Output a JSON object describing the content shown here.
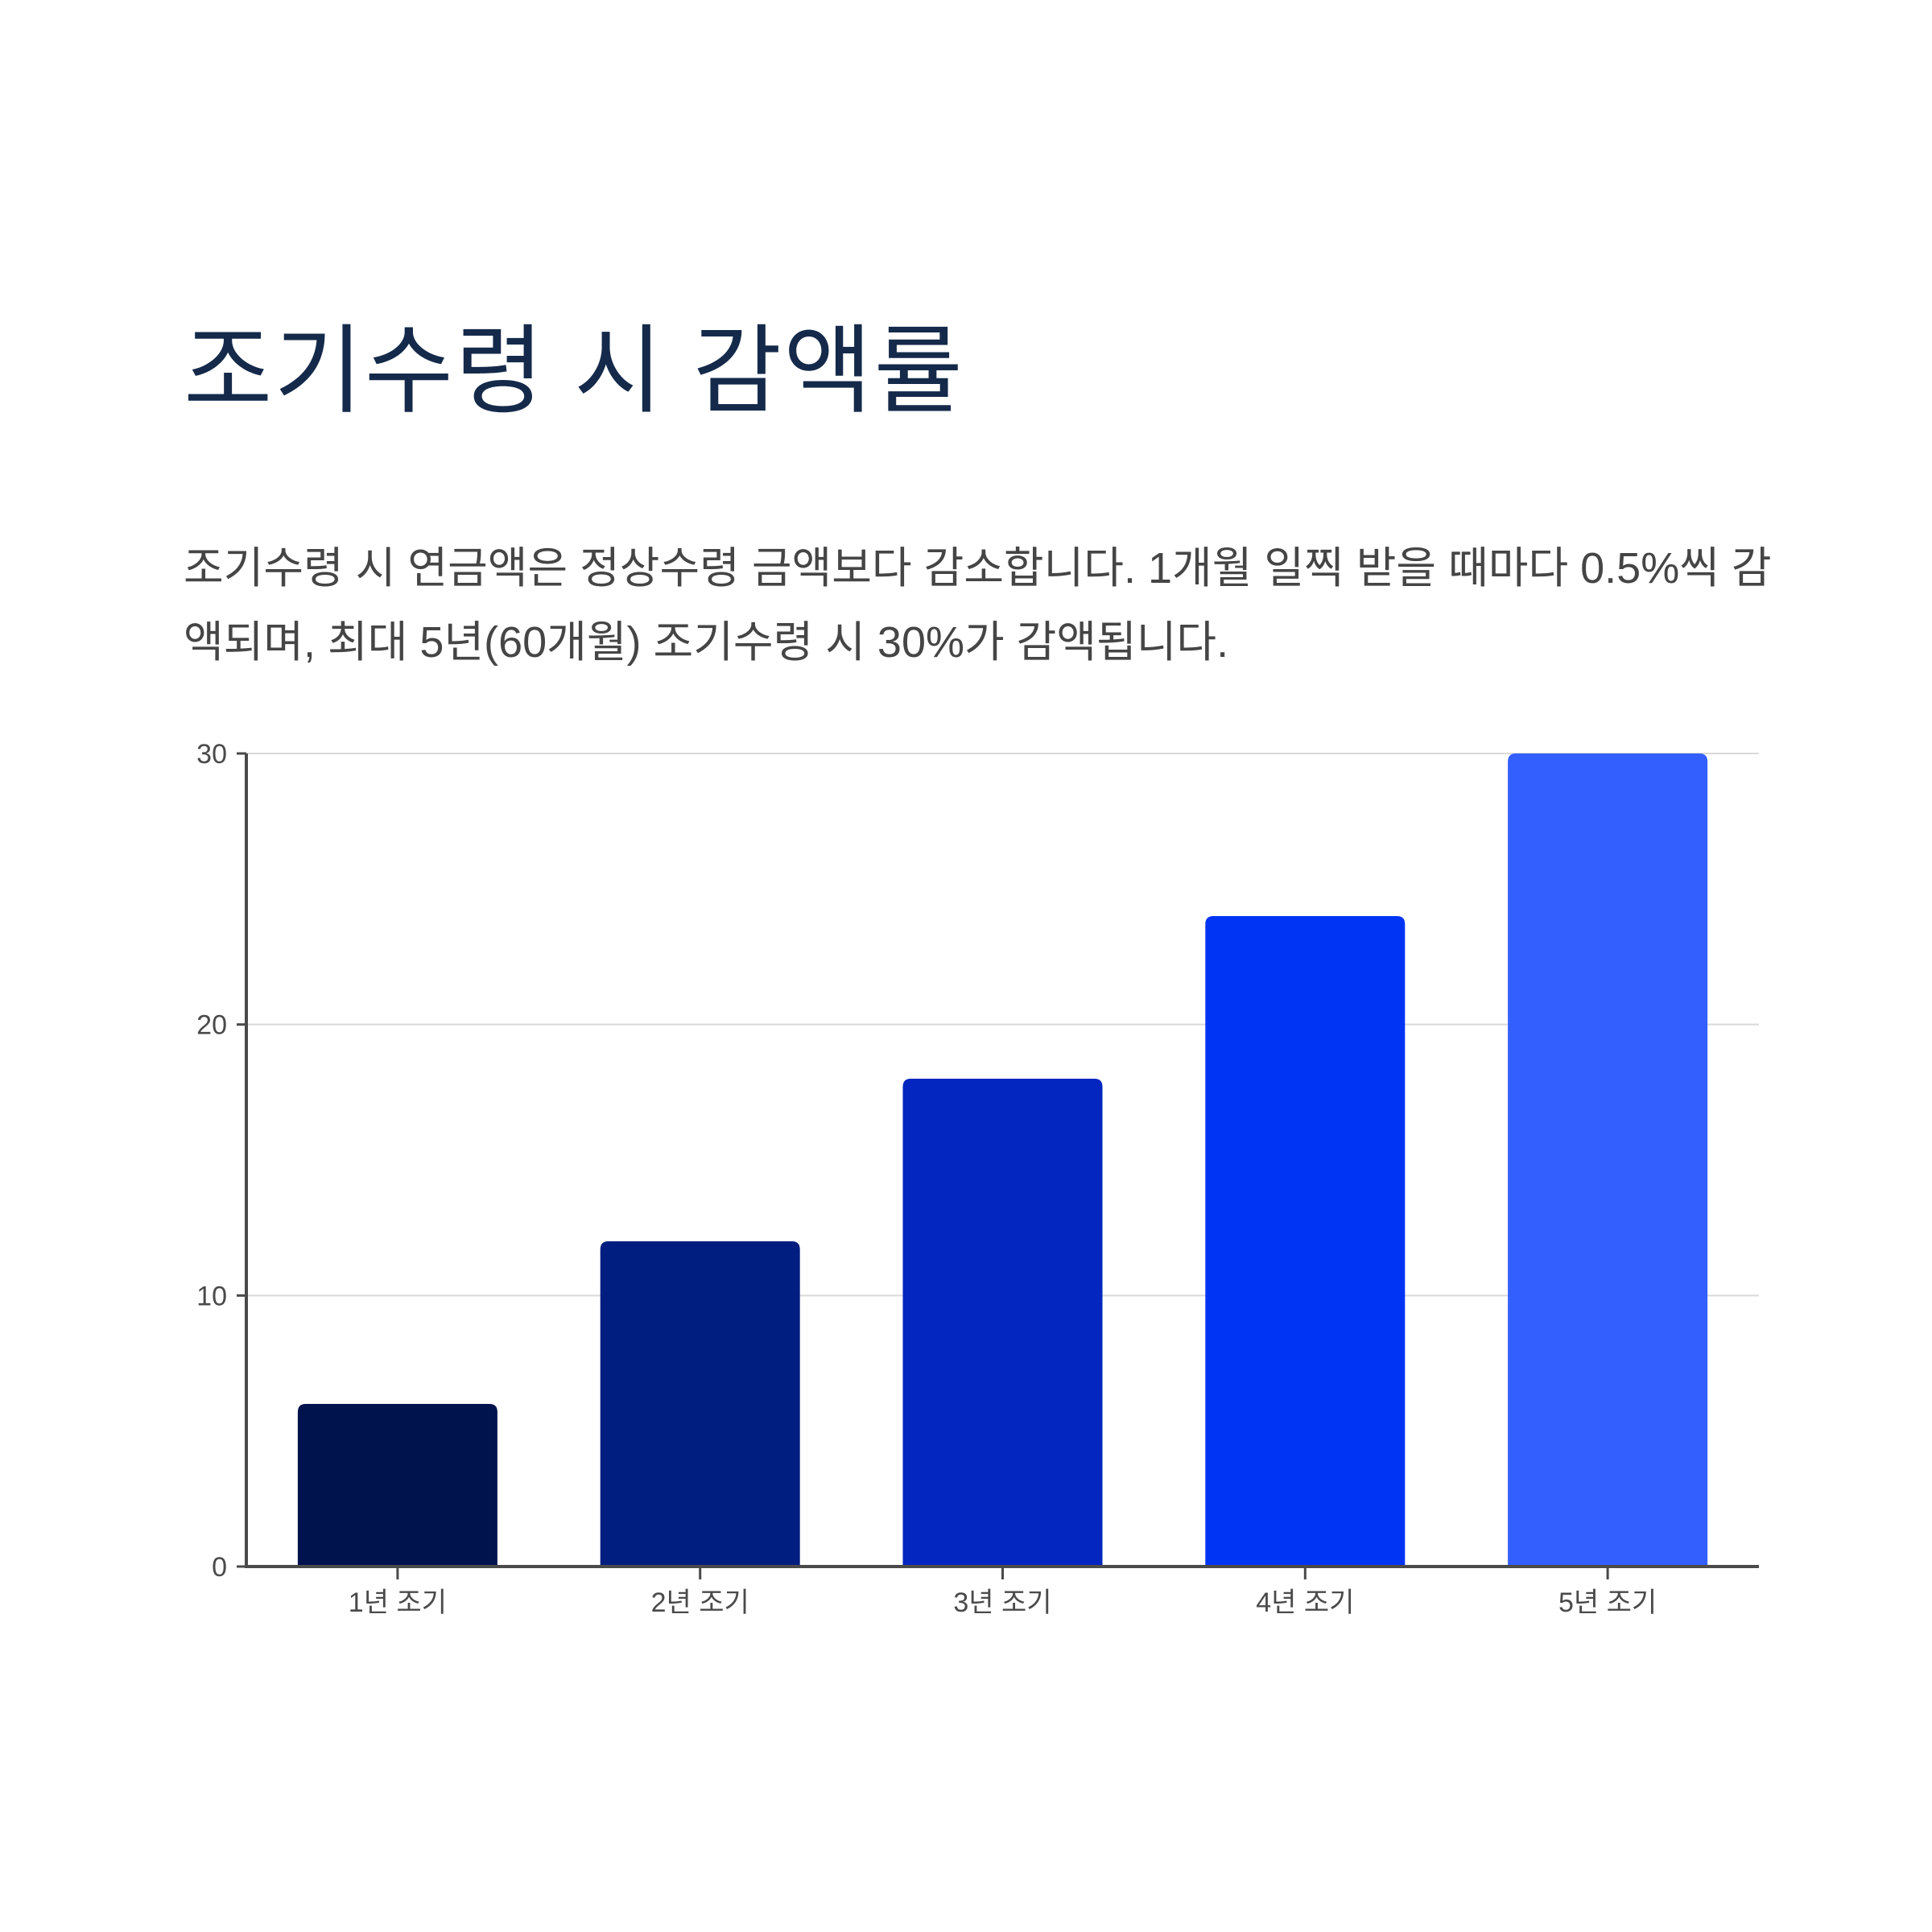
{
  "page": {
    "title": "조기수령 시 감액률",
    "description": "조기수령 시 연금액은 정상수령 금액보다 감소합니다. 1개월 일찍 받을 때마다 0.5%씩 감액되며, 최대 5년(60개월) 조기수령 시 30%가 감액됩니다."
  },
  "chart_data": {
    "type": "bar",
    "title": "",
    "xlabel": "",
    "ylabel": "",
    "categories": [
      "1년 조기",
      "2년 조기",
      "3년 조기",
      "4년 조기",
      "5년 조기"
    ],
    "values": [
      6,
      12,
      18,
      24,
      30
    ],
    "colors": [
      "#00134d",
      "#001e80",
      "#0325c0",
      "#0034f5",
      "#335ffe"
    ],
    "ylim": [
      0,
      30
    ],
    "yticks": [
      0,
      10,
      20,
      30
    ],
    "grid": true,
    "legend": "none"
  }
}
